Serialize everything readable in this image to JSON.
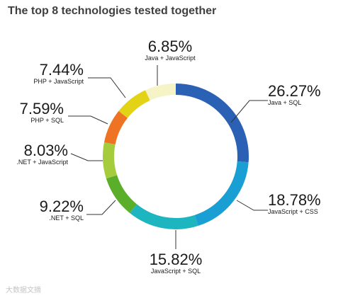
{
  "chart_data": {
    "type": "pie",
    "variant": "donut",
    "title": "The top 8 technologies tested together",
    "categories": [
      "Java + SQL",
      "JavaScript + CSS",
      "JavaScript + SQL",
      ".NET + SQL",
      ".NET + JavaScript",
      "PHP + SQL",
      "PHP + JavaScript",
      "Java + JavaScript"
    ],
    "values": [
      26.27,
      18.78,
      15.82,
      9.22,
      8.03,
      7.59,
      7.44,
      6.85
    ],
    "value_labels": [
      "26.27%",
      "18.78%",
      "15.82%",
      "9.22%",
      "8.03%",
      "7.59%",
      "7.44%",
      "6.85%"
    ],
    "colors": [
      "#2a61b5",
      "#1a9fd4",
      "#1cb5c0",
      "#5aae2a",
      "#a4cc3c",
      "#ee7424",
      "#e2d316",
      "#f6f4c6"
    ],
    "legend": "none"
  },
  "watermark": "大数据文摘"
}
